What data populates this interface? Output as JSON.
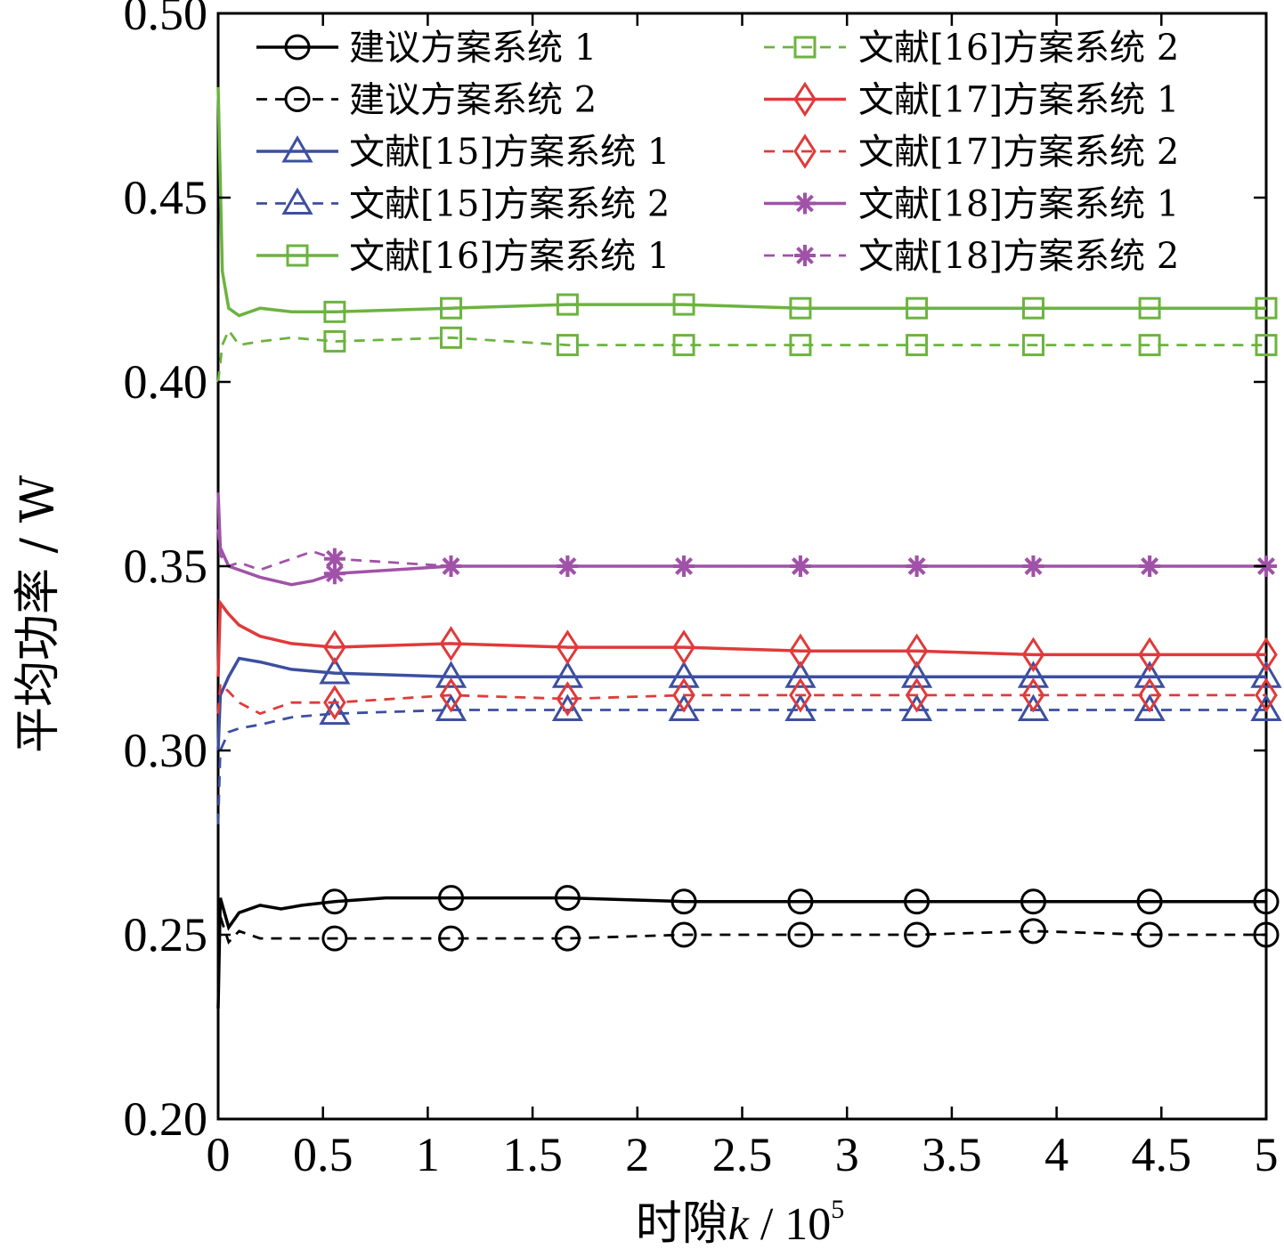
{
  "chart_data": {
    "type": "line",
    "xlabel_prefix": "时隙",
    "xlabel_var": "k",
    "xlabel_unit": " / 10",
    "xlabel_exp": "5",
    "ylabel": "平均功率 / W",
    "xlim": [
      0,
      5
    ],
    "ylim": [
      0.2,
      0.5
    ],
    "x_ticks": [
      {
        "v": 0,
        "label": "0"
      },
      {
        "v": 0.5,
        "label": "0.5"
      },
      {
        "v": 1,
        "label": "1"
      },
      {
        "v": 1.5,
        "label": "1.5"
      },
      {
        "v": 2,
        "label": "2"
      },
      {
        "v": 2.5,
        "label": "2.5"
      },
      {
        "v": 3,
        "label": "3"
      },
      {
        "v": 3.5,
        "label": "3.5"
      },
      {
        "v": 4,
        "label": "4"
      },
      {
        "v": 4.5,
        "label": "4.5"
      },
      {
        "v": 5,
        "label": "5"
      }
    ],
    "y_ticks": [
      {
        "v": 0.2,
        "label": "0.20"
      },
      {
        "v": 0.25,
        "label": "0.25"
      },
      {
        "v": 0.3,
        "label": "0.30"
      },
      {
        "v": 0.35,
        "label": "0.35"
      },
      {
        "v": 0.4,
        "label": "0.40"
      },
      {
        "v": 0.45,
        "label": "0.45"
      },
      {
        "v": 0.5,
        "label": "0.50"
      }
    ],
    "grid": false,
    "legend_position": "top",
    "legend_columns": 2,
    "marker_x": [
      0.556,
      1.111,
      1.667,
      2.222,
      2.778,
      3.333,
      3.889,
      4.444,
      5.0
    ],
    "series": [
      {
        "name": "建议方案系统 1",
        "color": "#000000",
        "dash": "solid",
        "marker": "circle",
        "points": [
          [
            0,
            0.23
          ],
          [
            0.01,
            0.26
          ],
          [
            0.05,
            0.252
          ],
          [
            0.1,
            0.256
          ],
          [
            0.2,
            0.258
          ],
          [
            0.3,
            0.257
          ],
          [
            0.4,
            0.258
          ],
          [
            0.556,
            0.259
          ],
          [
            0.8,
            0.26
          ],
          [
            1.111,
            0.26
          ],
          [
            1.667,
            0.26
          ],
          [
            2.222,
            0.259
          ],
          [
            2.778,
            0.259
          ],
          [
            3.333,
            0.259
          ],
          [
            3.889,
            0.259
          ],
          [
            4.444,
            0.259
          ],
          [
            5,
            0.259
          ]
        ]
      },
      {
        "name": "建议方案系统 2",
        "color": "#000000",
        "dash": "dashed",
        "marker": "circle",
        "points": [
          [
            0,
            0.24
          ],
          [
            0.01,
            0.255
          ],
          [
            0.05,
            0.248
          ],
          [
            0.1,
            0.251
          ],
          [
            0.2,
            0.249
          ],
          [
            0.3,
            0.249
          ],
          [
            0.556,
            0.249
          ],
          [
            1.111,
            0.249
          ],
          [
            1.667,
            0.249
          ],
          [
            2.222,
            0.25
          ],
          [
            2.778,
            0.25
          ],
          [
            3.333,
            0.25
          ],
          [
            3.889,
            0.251
          ],
          [
            4.444,
            0.25
          ],
          [
            5,
            0.25
          ]
        ]
      },
      {
        "name": "文献[15]方案系统 1",
        "color": "#3c4fa0",
        "dash": "solid",
        "marker": "triangle",
        "points": [
          [
            0,
            0.3
          ],
          [
            0.01,
            0.315
          ],
          [
            0.05,
            0.32
          ],
          [
            0.1,
            0.325
          ],
          [
            0.2,
            0.324
          ],
          [
            0.35,
            0.322
          ],
          [
            0.556,
            0.321
          ],
          [
            1.111,
            0.32
          ],
          [
            1.667,
            0.32
          ],
          [
            2.222,
            0.32
          ],
          [
            2.778,
            0.32
          ],
          [
            3.333,
            0.32
          ],
          [
            3.889,
            0.32
          ],
          [
            4.444,
            0.32
          ],
          [
            5,
            0.32
          ]
        ]
      },
      {
        "name": "文献[15]方案系统 2",
        "color": "#3c4fa0",
        "dash": "dashed",
        "marker": "triangle",
        "points": [
          [
            0,
            0.28
          ],
          [
            0.01,
            0.3
          ],
          [
            0.05,
            0.305
          ],
          [
            0.1,
            0.306
          ],
          [
            0.2,
            0.307
          ],
          [
            0.35,
            0.309
          ],
          [
            0.556,
            0.31
          ],
          [
            1.111,
            0.311
          ],
          [
            1.667,
            0.311
          ],
          [
            2.222,
            0.311
          ],
          [
            2.778,
            0.311
          ],
          [
            3.333,
            0.311
          ],
          [
            3.889,
            0.311
          ],
          [
            4.444,
            0.311
          ],
          [
            5,
            0.311
          ]
        ]
      },
      {
        "name": "文献[16]方案系统 1",
        "color": "#6cb33f",
        "dash": "solid",
        "marker": "square",
        "points": [
          [
            0,
            0.48
          ],
          [
            0.02,
            0.43
          ],
          [
            0.05,
            0.42
          ],
          [
            0.1,
            0.418
          ],
          [
            0.2,
            0.42
          ],
          [
            0.35,
            0.419
          ],
          [
            0.556,
            0.419
          ],
          [
            1.111,
            0.42
          ],
          [
            1.667,
            0.421
          ],
          [
            2.222,
            0.421
          ],
          [
            2.778,
            0.42
          ],
          [
            3.333,
            0.42
          ],
          [
            3.889,
            0.42
          ],
          [
            4.444,
            0.42
          ],
          [
            5,
            0.42
          ]
        ]
      },
      {
        "name": "文献[16]方案系统 2",
        "color": "#6cb33f",
        "dash": "dashed",
        "marker": "square",
        "points": [
          [
            0,
            0.4
          ],
          [
            0.02,
            0.41
          ],
          [
            0.05,
            0.414
          ],
          [
            0.1,
            0.41
          ],
          [
            0.2,
            0.411
          ],
          [
            0.35,
            0.412
          ],
          [
            0.556,
            0.411
          ],
          [
            1.111,
            0.412
          ],
          [
            1.667,
            0.41
          ],
          [
            2.222,
            0.41
          ],
          [
            2.778,
            0.41
          ],
          [
            3.333,
            0.41
          ],
          [
            3.889,
            0.41
          ],
          [
            4.444,
            0.41
          ],
          [
            5,
            0.41
          ]
        ]
      },
      {
        "name": "文献[17]方案系统 1",
        "color": "#e03a3a",
        "dash": "solid",
        "marker": "diamond",
        "points": [
          [
            0,
            0.32
          ],
          [
            0.01,
            0.34
          ],
          [
            0.05,
            0.337
          ],
          [
            0.1,
            0.334
          ],
          [
            0.2,
            0.331
          ],
          [
            0.35,
            0.329
          ],
          [
            0.556,
            0.328
          ],
          [
            1.111,
            0.329
          ],
          [
            1.667,
            0.328
          ],
          [
            2.222,
            0.328
          ],
          [
            2.778,
            0.327
          ],
          [
            3.333,
            0.327
          ],
          [
            3.889,
            0.326
          ],
          [
            4.444,
            0.326
          ],
          [
            5,
            0.326
          ]
        ]
      },
      {
        "name": "文献[17]方案系统 2",
        "color": "#e03a3a",
        "dash": "dashed",
        "marker": "diamond",
        "points": [
          [
            0,
            0.31
          ],
          [
            0.01,
            0.318
          ],
          [
            0.05,
            0.316
          ],
          [
            0.1,
            0.313
          ],
          [
            0.2,
            0.31
          ],
          [
            0.35,
            0.313
          ],
          [
            0.556,
            0.313
          ],
          [
            1.111,
            0.315
          ],
          [
            1.667,
            0.314
          ],
          [
            2.222,
            0.315
          ],
          [
            2.778,
            0.315
          ],
          [
            3.333,
            0.315
          ],
          [
            3.889,
            0.315
          ],
          [
            4.444,
            0.315
          ],
          [
            5,
            0.315
          ]
        ]
      },
      {
        "name": "文献[18]方案系统 1",
        "color": "#a052a8",
        "dash": "solid",
        "marker": "asterisk",
        "points": [
          [
            0,
            0.37
          ],
          [
            0.01,
            0.355
          ],
          [
            0.05,
            0.35
          ],
          [
            0.1,
            0.349
          ],
          [
            0.2,
            0.347
          ],
          [
            0.35,
            0.345
          ],
          [
            0.45,
            0.346
          ],
          [
            0.556,
            0.348
          ],
          [
            1.111,
            0.35
          ],
          [
            1.667,
            0.35
          ],
          [
            2.222,
            0.35
          ],
          [
            2.778,
            0.35
          ],
          [
            3.333,
            0.35
          ],
          [
            3.889,
            0.35
          ],
          [
            4.444,
            0.35
          ],
          [
            5,
            0.35
          ]
        ]
      },
      {
        "name": "文献[18]方案系统 2",
        "color": "#a052a8",
        "dash": "dashed",
        "marker": "asterisk",
        "points": [
          [
            0,
            0.36
          ],
          [
            0.01,
            0.353
          ],
          [
            0.05,
            0.35
          ],
          [
            0.1,
            0.351
          ],
          [
            0.2,
            0.349
          ],
          [
            0.35,
            0.352
          ],
          [
            0.45,
            0.354
          ],
          [
            0.556,
            0.352
          ],
          [
            1.111,
            0.35
          ],
          [
            1.667,
            0.35
          ],
          [
            2.222,
            0.35
          ],
          [
            2.778,
            0.35
          ],
          [
            3.333,
            0.35
          ],
          [
            3.889,
            0.35
          ],
          [
            4.444,
            0.35
          ],
          [
            5,
            0.35
          ]
        ]
      }
    ]
  }
}
